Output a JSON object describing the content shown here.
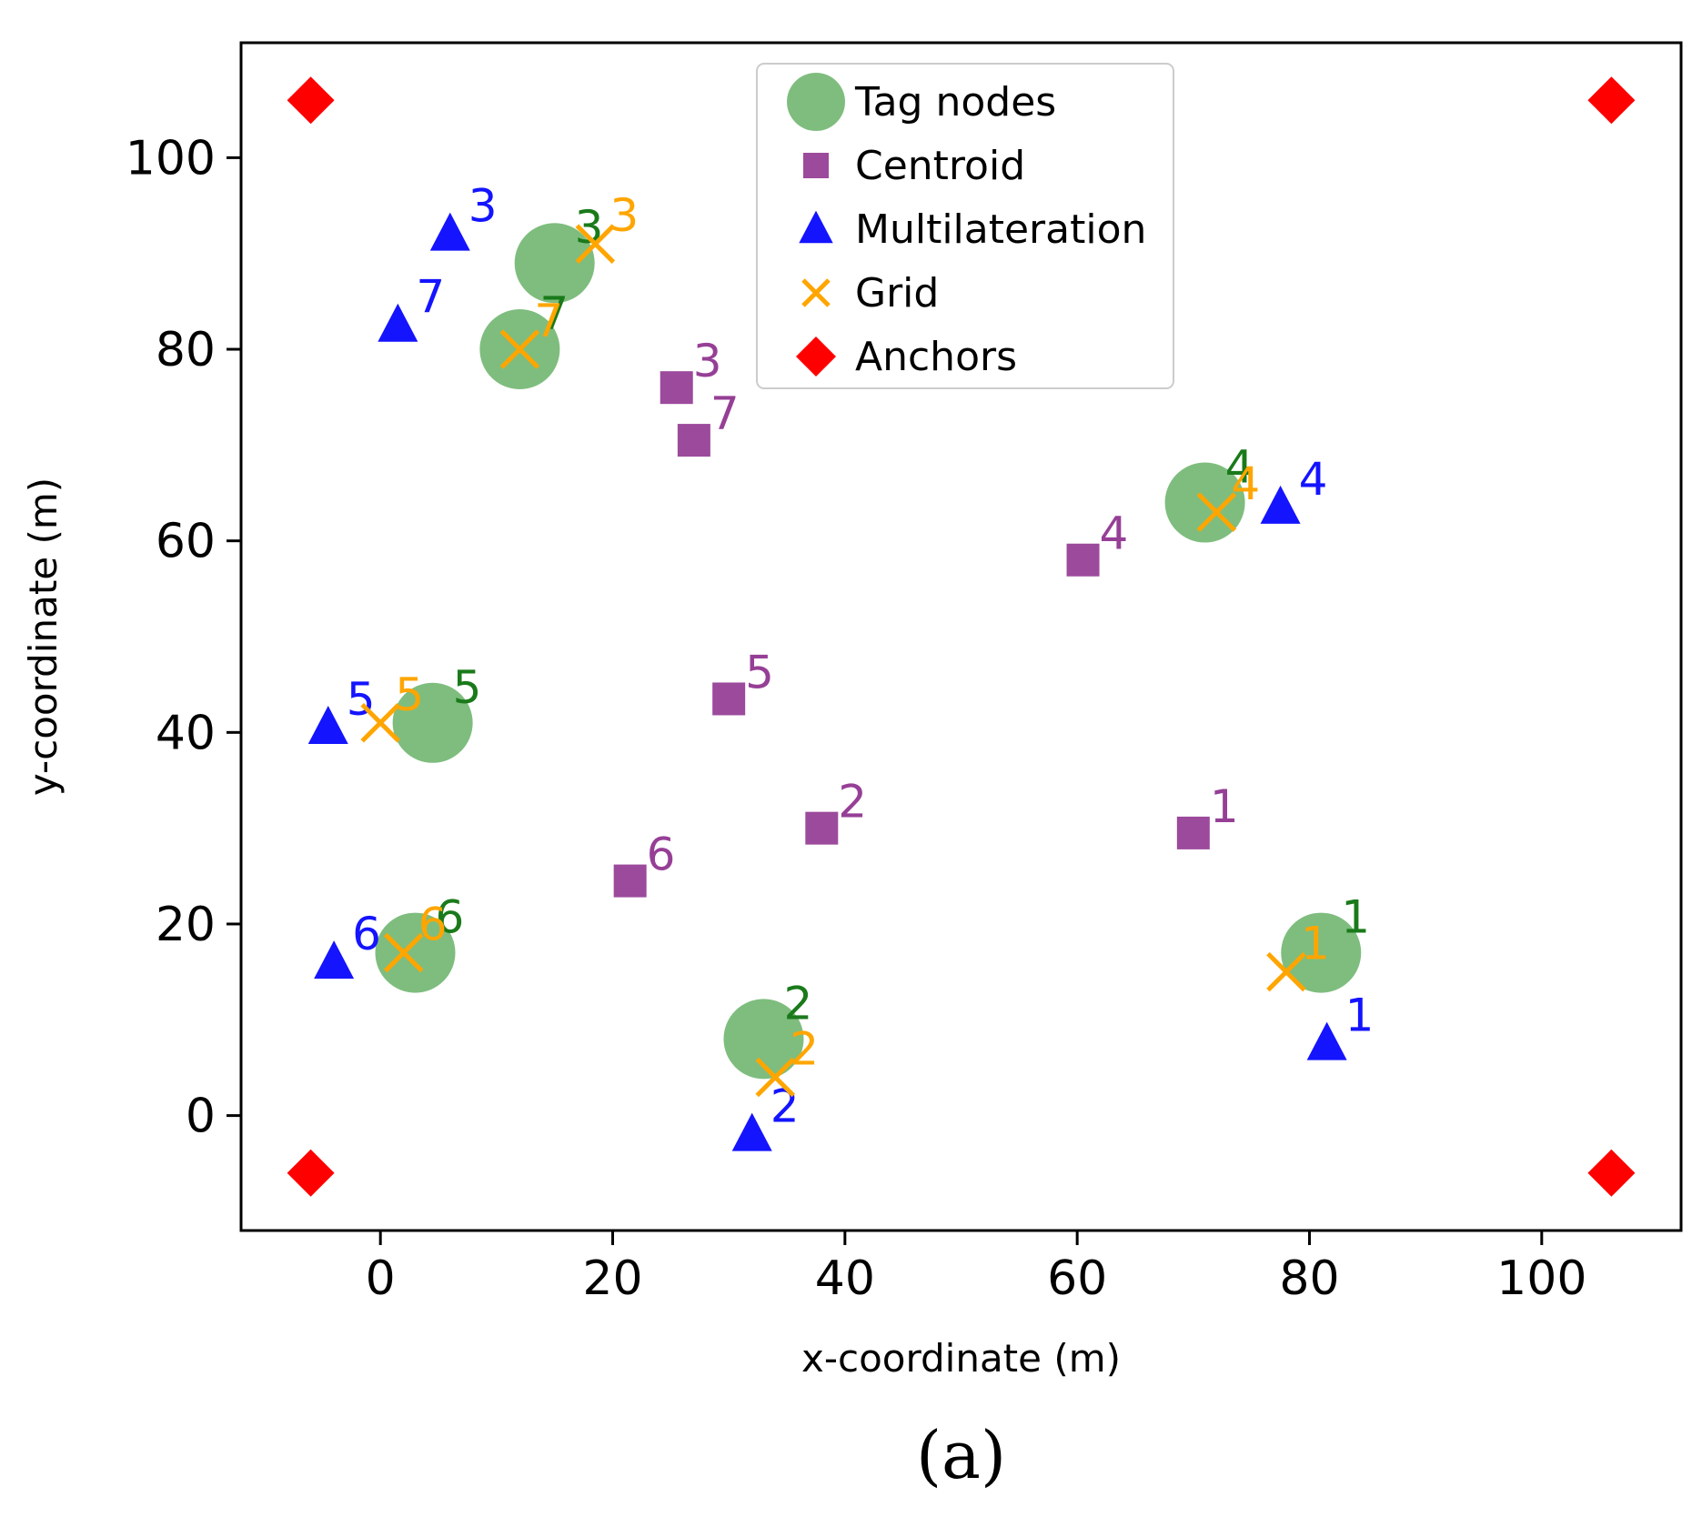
{
  "chart_data": {
    "type": "scatter",
    "title": "",
    "xlabel": "x-coordinate (m)",
    "ylabel": "y-coordinate (m)",
    "xlim": [
      -12,
      112
    ],
    "ylim": [
      -12,
      112
    ],
    "xticks": [
      0,
      20,
      40,
      60,
      80,
      100
    ],
    "yticks": [
      0,
      20,
      40,
      60,
      80,
      100
    ],
    "grid": false,
    "legend_position": "top-center",
    "panel_label": "(a)",
    "series": [
      {
        "name": "Tag nodes",
        "marker": "circle",
        "color": "#5aaa5a",
        "label_color": "#1a7a1a",
        "points": [
          {
            "id": "1",
            "x": 81,
            "y": 17
          },
          {
            "id": "2",
            "x": 33,
            "y": 8
          },
          {
            "id": "3",
            "x": 15,
            "y": 89
          },
          {
            "id": "4",
            "x": 71,
            "y": 64
          },
          {
            "id": "5",
            "x": 4.5,
            "y": 41
          },
          {
            "id": "6",
            "x": 3,
            "y": 17
          },
          {
            "id": "7",
            "x": 12,
            "y": 80
          }
        ]
      },
      {
        "name": "Centroid",
        "marker": "square",
        "color": "#8b2a8b",
        "label_color": "#8b2a8b",
        "points": [
          {
            "id": "1",
            "x": 70,
            "y": 29.5
          },
          {
            "id": "2",
            "x": 38,
            "y": 30
          },
          {
            "id": "3",
            "x": 25.5,
            "y": 76
          },
          {
            "id": "4",
            "x": 60.5,
            "y": 58
          },
          {
            "id": "5",
            "x": 30,
            "y": 43.5
          },
          {
            "id": "6",
            "x": 21.5,
            "y": 24.5
          },
          {
            "id": "7",
            "x": 27,
            "y": 70.5
          }
        ]
      },
      {
        "name": "Multilateration",
        "marker": "triangle",
        "color": "#1414ff",
        "label_color": "#1414ff",
        "points": [
          {
            "id": "1",
            "x": 81.5,
            "y": 7.5
          },
          {
            "id": "2",
            "x": 32,
            "y": -2
          },
          {
            "id": "3",
            "x": 6,
            "y": 92
          },
          {
            "id": "4",
            "x": 77.5,
            "y": 63.5
          },
          {
            "id": "5",
            "x": -4.5,
            "y": 40.5
          },
          {
            "id": "6",
            "x": -4,
            "y": 16
          },
          {
            "id": "7",
            "x": 1.5,
            "y": 82.5
          }
        ]
      },
      {
        "name": "Grid",
        "marker": "x",
        "color": "#ffa500",
        "label_color": "#ffa500",
        "points": [
          {
            "id": "1",
            "x": 78,
            "y": 15
          },
          {
            "id": "2",
            "x": 34,
            "y": 4
          },
          {
            "id": "3",
            "x": 18.5,
            "y": 91
          },
          {
            "id": "4",
            "x": 72,
            "y": 63
          },
          {
            "id": "5",
            "x": 0,
            "y": 41
          },
          {
            "id": "6",
            "x": 2,
            "y": 17
          },
          {
            "id": "7",
            "x": 12,
            "y": 80
          }
        ]
      },
      {
        "name": "Anchors",
        "marker": "diamond",
        "color": "#ff0000",
        "points": [
          {
            "x": -6,
            "y": -6
          },
          {
            "x": 106,
            "y": -6
          },
          {
            "x": -6,
            "y": 106
          },
          {
            "x": 106,
            "y": 106
          }
        ]
      }
    ]
  }
}
